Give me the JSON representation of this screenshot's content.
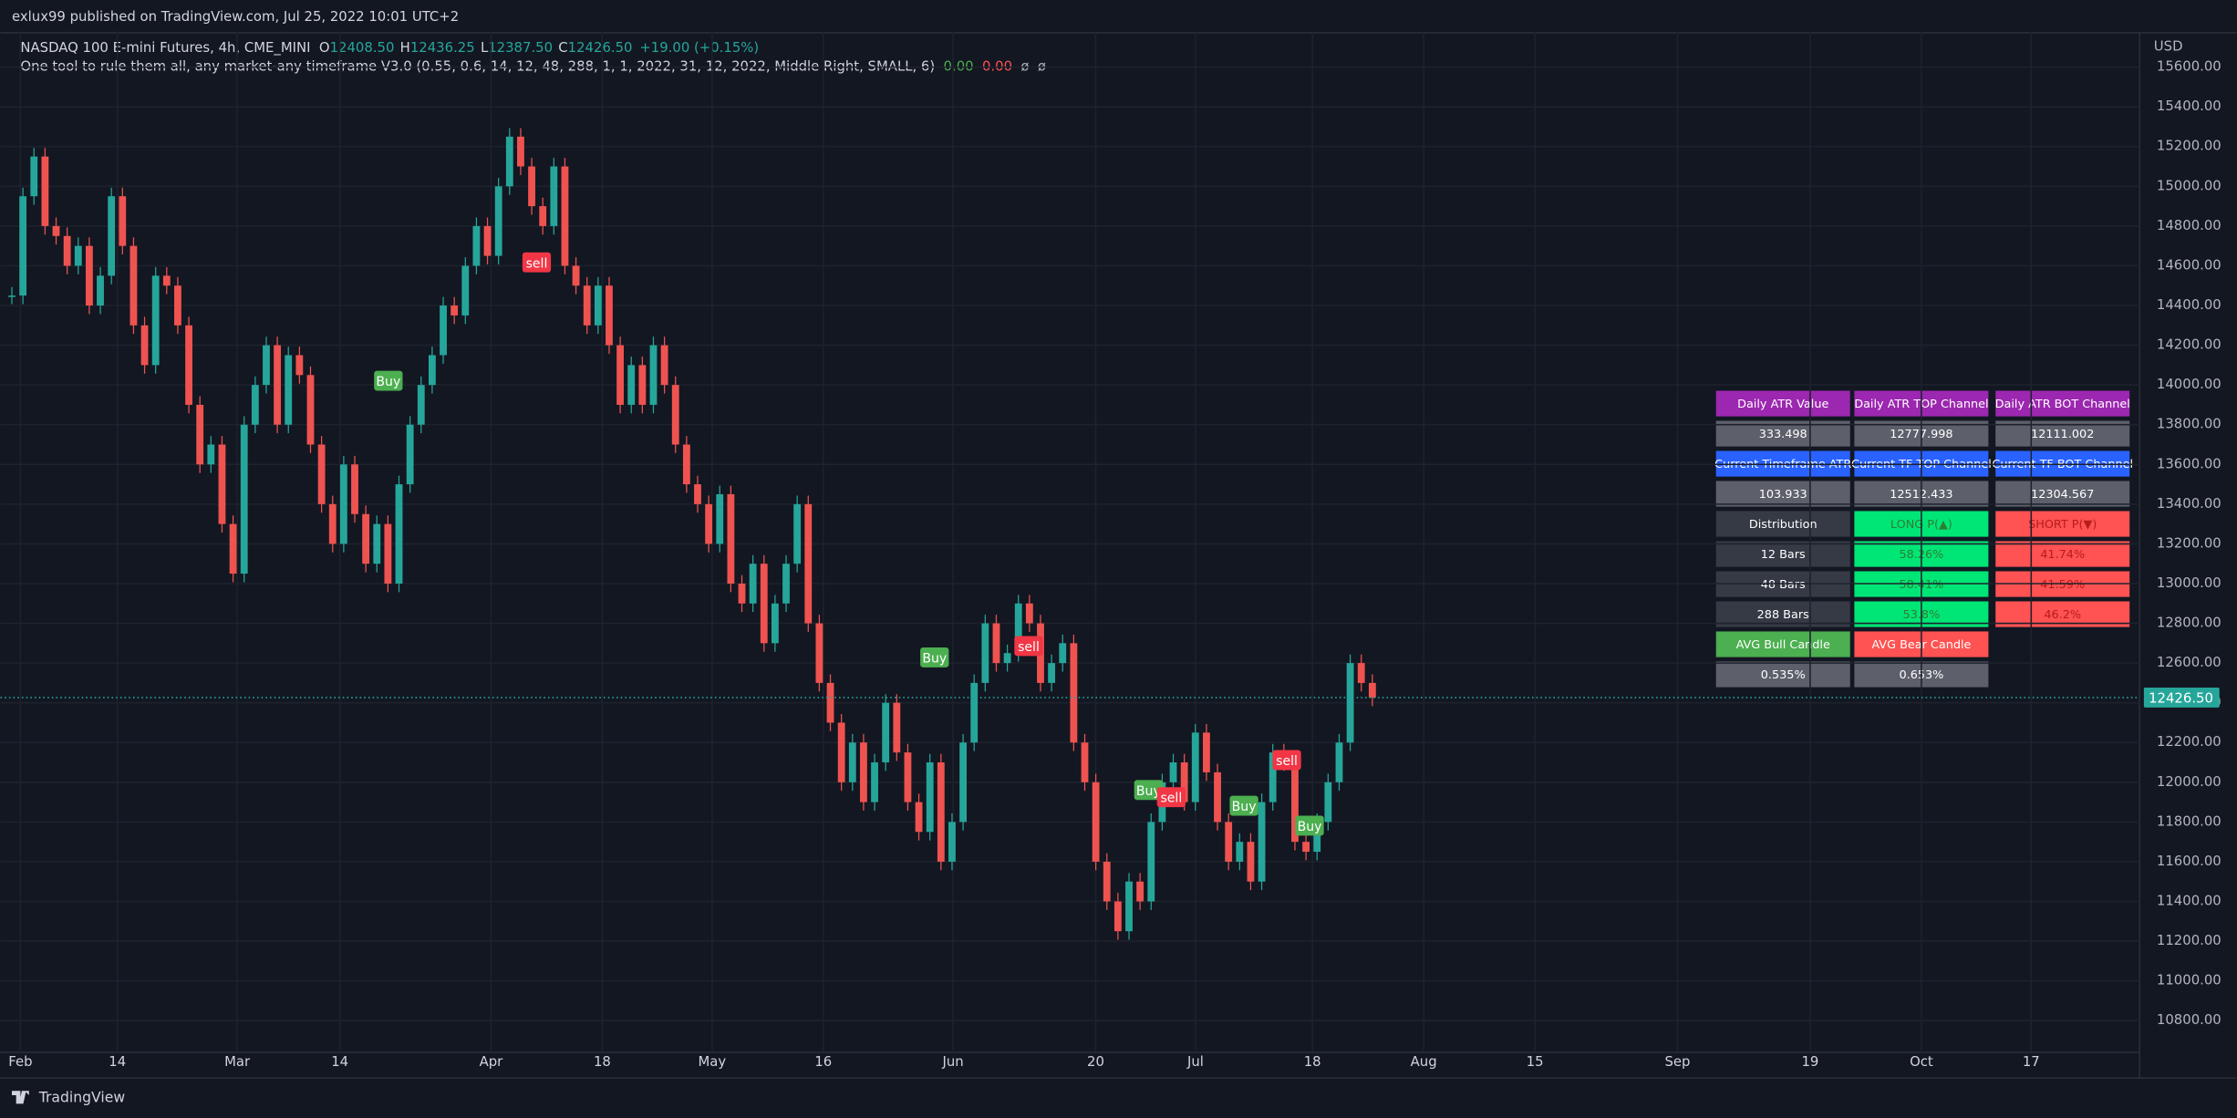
{
  "header": {
    "publisher": "exlux99 published on TradingView.com, Jul 25, 2022 10:01 UTC+2",
    "symbol": "NASDAQ 100 E-mini Futures, 4h, CME_MINI",
    "ohlc": [
      {
        "key": "O",
        "value": "12408.50"
      },
      {
        "key": "H",
        "value": "12436.25"
      },
      {
        "key": "L",
        "value": "12387.50"
      },
      {
        "key": "C",
        "value": "12426.50"
      }
    ],
    "change": "+19.00 (+0.15%)",
    "indicator": "One tool to rule them all, any market-any timeframe V3.0 (0.55, 0.6, 14, 12, 48, 288, 1, 1, 2022, 31, 12, 2022, Middle Right, SMALL, 6)",
    "indicator_values": [
      "0.00",
      "0.00",
      "ø",
      "ø"
    ]
  },
  "chart_data": {
    "type": "candlestick",
    "currency": "USD",
    "values": [
      14450,
      14950,
      15150,
      14800,
      14750,
      14600,
      14700,
      14400,
      14550,
      14950,
      14700,
      14300,
      14100,
      14550,
      14500,
      14300,
      13900,
      13600,
      13700,
      13300,
      13050,
      13800,
      14000,
      14200,
      13800,
      14150,
      14050,
      13700,
      13400,
      13200,
      13600,
      13350,
      13100,
      13300,
      13000,
      13500,
      13800,
      14000,
      14150,
      14400,
      14350,
      14600,
      14800,
      14650,
      15000,
      15250,
      15100,
      14900,
      14800,
      15100,
      14600,
      14500,
      14300,
      14500,
      14200,
      13900,
      14100,
      13900,
      14200,
      14000,
      13700,
      13500,
      13400,
      13200,
      13450,
      13000,
      12900,
      13100,
      12700,
      12900,
      13100,
      13400,
      12800,
      12500,
      12300,
      12000,
      12200,
      11900,
      12100,
      12400,
      12150,
      11900,
      11750,
      12100,
      11600,
      11800,
      12200,
      12500,
      12800,
      12600,
      12650,
      12900,
      12800,
      12500,
      12600,
      12700,
      12200,
      12000,
      11600,
      11400,
      11250,
      11500,
      11400,
      11800,
      12000,
      12100,
      11900,
      12250,
      12050,
      11800,
      11600,
      11700,
      11500,
      11900,
      12150,
      12100,
      11700,
      11650,
      11800,
      12000,
      12200,
      12600,
      12500,
      12426.5
    ],
    "up_color": "#26a69a",
    "down_color": "#ef5350",
    "ylim": [
      10640,
      15780
    ],
    "yticks": [
      {
        "value": 10800,
        "label": "10800.00"
      },
      {
        "value": 11000,
        "label": "11000.00"
      },
      {
        "value": 11200,
        "label": "11200.00"
      },
      {
        "value": 11400,
        "label": "11400.00"
      },
      {
        "value": 11600,
        "label": "11600.00"
      },
      {
        "value": 11800,
        "label": "11800.00"
      },
      {
        "value": 12000,
        "label": "12000.00"
      },
      {
        "value": 12200,
        "label": "12200.00"
      },
      {
        "value": 12400,
        "label": "12400.00"
      },
      {
        "value": 12600,
        "label": "12600.00"
      },
      {
        "value": 12800,
        "label": "12800.00"
      },
      {
        "value": 13000,
        "label": "13000.00"
      },
      {
        "value": 13200,
        "label": "13200.00"
      },
      {
        "value": 13400,
        "label": "13400.00"
      },
      {
        "value": 13600,
        "label": "13600.00"
      },
      {
        "value": 13800,
        "label": "13800.00"
      },
      {
        "value": 14000,
        "label": "14000.00"
      },
      {
        "value": 14200,
        "label": "14200.00"
      },
      {
        "value": 14400,
        "label": "14400.00"
      },
      {
        "value": 14600,
        "label": "14600.00"
      },
      {
        "value": 14800,
        "label": "14800.00"
      },
      {
        "value": 15000,
        "label": "15000.00"
      },
      {
        "value": 15200,
        "label": "15200.00"
      },
      {
        "value": 15400,
        "label": "15400.00"
      },
      {
        "value": 15600,
        "label": "15600.00"
      }
    ],
    "xticks": [
      "Feb",
      "14",
      "Mar",
      "14",
      "Apr",
      "18",
      "May",
      "16",
      "Jun",
      "20",
      "Jul",
      "18",
      "Aug",
      "15",
      "Sep",
      "19",
      "Oct",
      "17"
    ],
    "grid": true,
    "last_price": {
      "value": 12426.5,
      "label": "12426.50"
    },
    "signals": [
      "sell",
      "Buy",
      "Buy",
      "sell",
      "Buy",
      "sell",
      "Buy",
      "sell",
      "Buy"
    ]
  },
  "table": {
    "rows": [
      [
        "Daily ATR Value",
        "Daily ATR TOP Channel",
        "Daily ATR BOT Channel"
      ],
      [
        "333.498",
        "12777.998",
        "12111.002"
      ],
      [
        "Current Timeframe ATR",
        "Current TF TOP Channel",
        "Current TF BOT Channel"
      ],
      [
        "103.933",
        "12512.433",
        "12304.567"
      ],
      [
        "Distribution",
        "LONG P(▲)",
        "SHORT P(▼)"
      ],
      [
        "12 Bars",
        "58.26%",
        "41.74%"
      ],
      [
        "48 Bars",
        "58.41%",
        "41.59%"
      ],
      [
        "288 Bars",
        "53.8%",
        "46.2%"
      ],
      [
        "AVG Bull Candle",
        "AVG Bear Candle"
      ],
      [
        "0.535%",
        "0.653%"
      ]
    ]
  },
  "footer": {
    "brand": "TradingView"
  }
}
